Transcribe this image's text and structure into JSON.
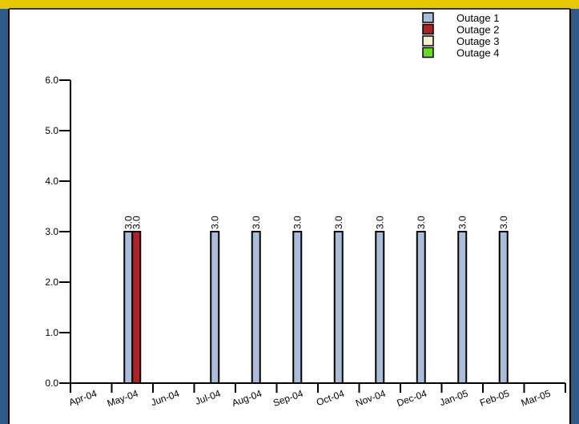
{
  "colors": {
    "border_blue": "#2f5b8c",
    "border_gold": "#e6c800",
    "plot_bg": "#ffffff"
  },
  "chart_data": {
    "type": "bar",
    "categories": [
      "Apr-04",
      "May-04",
      "Jun-04",
      "Jul-04",
      "Aug-04",
      "Sep-04",
      "Oct-04",
      "Nov-04",
      "Dec-04",
      "Jan-05",
      "Feb-05",
      "Mar-05"
    ],
    "series": [
      {
        "name": "Outage 1",
        "color": "#a9bcd9",
        "values": [
          0,
          3.0,
          0,
          3.0,
          3.0,
          3.0,
          3.0,
          3.0,
          3.0,
          3.0,
          3.0,
          0
        ]
      },
      {
        "name": "Outage 2",
        "color": "#b22222",
        "values": [
          0,
          3.0,
          0,
          0,
          0,
          0,
          0,
          0,
          0,
          0,
          0,
          0
        ]
      },
      {
        "name": "Outage 3",
        "color": "#f5f0d0",
        "values": [
          0,
          0,
          0,
          0,
          0,
          0,
          0,
          0,
          0,
          0,
          0,
          0
        ]
      },
      {
        "name": "Outage 4",
        "color": "#66dd22",
        "values": [
          0,
          0,
          0,
          0,
          0,
          0,
          0,
          0,
          0,
          0,
          0,
          0
        ]
      }
    ],
    "data_labels": [
      {
        "category": "May-04",
        "series": "Outage 1",
        "text": "3.0"
      },
      {
        "category": "May-04",
        "series": "Outage 2",
        "text": "3.0"
      },
      {
        "category": "Jul-04",
        "series": "Outage 1",
        "text": "3.0"
      },
      {
        "category": "Aug-04",
        "series": "Outage 1",
        "text": "3.0"
      },
      {
        "category": "Sep-04",
        "series": "Outage 1",
        "text": "3.0"
      },
      {
        "category": "Oct-04",
        "series": "Outage 1",
        "text": "3.0"
      },
      {
        "category": "Nov-04",
        "series": "Outage 1",
        "text": "3.0"
      },
      {
        "category": "Dec-04",
        "series": "Outage 1",
        "text": "3.0"
      },
      {
        "category": "Jan-05",
        "series": "Outage 1",
        "text": "3.0"
      },
      {
        "category": "Feb-05",
        "series": "Outage 1",
        "text": "3.0"
      }
    ],
    "ylim": [
      0,
      6
    ],
    "yticks": [
      "0.0",
      "1.0",
      "2.0",
      "3.0",
      "4.0",
      "5.0",
      "6.0"
    ],
    "grid": false,
    "legend_position": "top-right",
    "title": "",
    "xlabel": "",
    "ylabel": ""
  }
}
